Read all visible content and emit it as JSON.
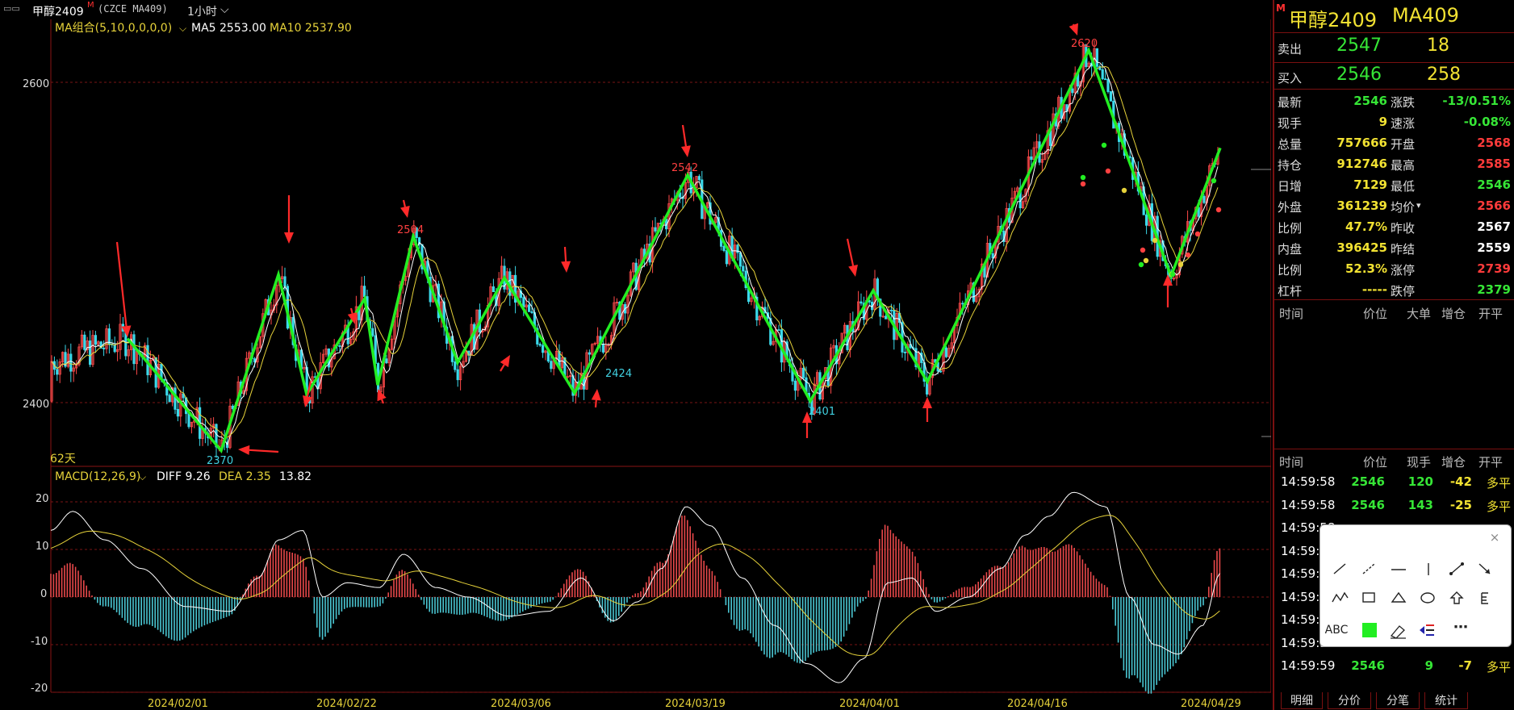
{
  "header": {
    "symbol": "甲醇2409",
    "marker": "M",
    "code": "(CZCE MA409)",
    "period": "1小时",
    "menu_icon": "window-control-icon"
  },
  "main_chart": {
    "ma_label": "MA组合(5,10,0,0,0,0)",
    "ma5": "MA5 2553.00",
    "ma10": "MA10 2537.90",
    "y_ticks": [
      "2600",
      "2400"
    ],
    "bottom_left": "62天",
    "price_labels": [
      {
        "text": "2620",
        "color": "#ff4040"
      },
      {
        "text": "2542",
        "color": "#ff4040"
      },
      {
        "text": "2504",
        "color": "#ff4040"
      },
      {
        "text": "2370",
        "color": "#40d0e0"
      },
      {
        "text": "2424",
        "color": "#40d0e0"
      },
      {
        "text": "2401",
        "color": "#40d0e0"
      }
    ],
    "zigzag_values": [
      2440,
      2370,
      2480,
      2405,
      2465,
      2411,
      2504,
      2425,
      2478,
      2406,
      2542,
      2401,
      2470,
      2413,
      2620,
      2479,
      2559
    ],
    "x_labels": [
      "2024/02/01",
      "2024/02/22",
      "2024/03/06",
      "2024/03/19",
      "2024/04/01",
      "2024/04/16",
      "2024/04/29"
    ]
  },
  "macd": {
    "label": "MACD(12,26,9)",
    "diff": "DIFF 9.26",
    "dea": "DEA 2.35",
    "macd": "13.82",
    "y_ticks": [
      "20",
      "10",
      "0",
      "-10",
      "-20"
    ]
  },
  "quote": {
    "marker": "M",
    "title": "甲醇2409",
    "code": "MA409",
    "ask_label": "卖出",
    "ask_price": "2547",
    "ask_vol": "18",
    "bid_label": "买入",
    "bid_price": "2546",
    "bid_vol": "258",
    "rows": [
      {
        "l1": "最新",
        "v1": "2546",
        "c1": "green",
        "l2": "涨跌",
        "v2": "-13/0.51%",
        "c2": "green"
      },
      {
        "l1": "现手",
        "v1": "9",
        "c1": "yellow",
        "l2": "速涨",
        "v2": "-0.08%",
        "c2": "green"
      },
      {
        "l1": "总量",
        "v1": "757666",
        "c1": "yellow",
        "l2": "开盘",
        "v2": "2568",
        "c2": "red"
      },
      {
        "l1": "持仓",
        "v1": "912746",
        "c1": "yellow",
        "l2": "最高",
        "v2": "2585",
        "c2": "red"
      },
      {
        "l1": "日增",
        "v1": "7129",
        "c1": "yellow",
        "l2": "最低",
        "v2": "2546",
        "c2": "green"
      },
      {
        "l1": "外盘",
        "v1": "361239",
        "c1": "yellow",
        "l2": "均价",
        "v2": "2566",
        "c2": "red"
      },
      {
        "l1": "比例",
        "v1": "47.7%",
        "c1": "yellow",
        "l2": "昨收",
        "v2": "2567",
        "c2": "white"
      },
      {
        "l1": "内盘",
        "v1": "396425",
        "c1": "yellow",
        "l2": "昨结",
        "v2": "2559",
        "c2": "white"
      },
      {
        "l1": "比例",
        "v1": "52.3%",
        "c1": "yellow",
        "l2": "涨停",
        "v2": "2739",
        "c2": "red"
      },
      {
        "l1": "杠杆",
        "v1": "-----",
        "c1": "yellow",
        "l2": "跌停",
        "v2": "2379",
        "c2": "green"
      }
    ],
    "block_header": [
      "时间",
      "价位",
      "大单",
      "增仓",
      "开平"
    ],
    "tick_header": [
      "时间",
      "价位",
      "现手",
      "增仓",
      "开平"
    ],
    "ticks": [
      {
        "time": "14:59:58",
        "price": "2546",
        "vol": "120",
        "chg": "-42",
        "type": "多平"
      },
      {
        "time": "14:59:58",
        "price": "2546",
        "vol": "143",
        "chg": "-25",
        "type": "多平"
      },
      {
        "time": "14:59:58",
        "price": "",
        "vol": "",
        "chg": "",
        "type": ""
      },
      {
        "time": "14:59:5",
        "price": "",
        "vol": "",
        "chg": "",
        "type": ""
      },
      {
        "time": "14:59:5",
        "price": "",
        "vol": "",
        "chg": "",
        "type": ""
      },
      {
        "time": "14:59:5",
        "price": "",
        "vol": "",
        "chg": "",
        "type": ""
      },
      {
        "time": "14:59:5",
        "price": "",
        "vol": "",
        "chg": "",
        "type": ""
      },
      {
        "time": "14:59:5",
        "price": "",
        "vol": "",
        "chg": "",
        "type": ""
      },
      {
        "time": "14:59:59",
        "price": "2546",
        "vol": "9",
        "chg": "-7",
        "type": "多平"
      }
    ],
    "tabs": [
      "明细",
      "分价",
      "分笔",
      "统计"
    ]
  },
  "toolbox": {
    "close": "×",
    "tools": [
      [
        "line-tool-icon",
        "ray-tool-icon",
        "horizontal-line-icon",
        "vertical-line-icon",
        "segment-tool-icon",
        "arrow-line-icon"
      ],
      [
        "polyline-tool-icon",
        "rectangle-tool-icon",
        "triangle-tool-icon",
        "ellipse-tool-icon",
        "up-arrow-tool-icon",
        "fibonacci-tool-icon"
      ],
      [
        "text-tool-icon",
        "color-picker-icon",
        "eraser-icon",
        "delete-all-icon",
        "more-tools-icon"
      ]
    ],
    "text_tool": "ABC",
    "more": "⋯",
    "swatch_color": "#22ee22"
  }
}
